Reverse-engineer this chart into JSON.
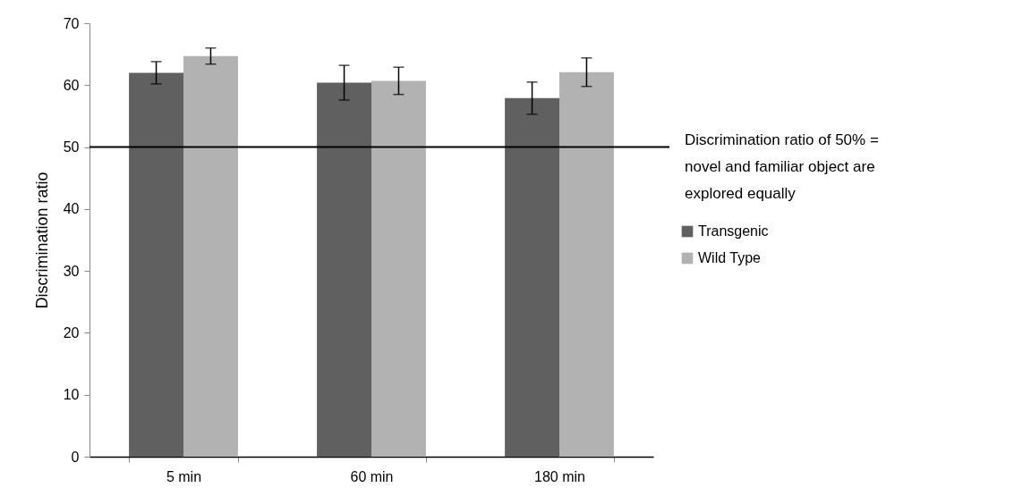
{
  "chart_data": {
    "type": "bar",
    "ylabel": "Discrimination ratio",
    "categories": [
      "5 min",
      "60 min",
      "180 min"
    ],
    "series": [
      {
        "name": "Transgenic",
        "color": "#606060",
        "values": [
          62.0,
          60.4,
          57.9
        ],
        "errors": [
          1.8,
          2.8,
          2.6
        ]
      },
      {
        "name": "Wild Type",
        "color": "#b2b2b2",
        "values": [
          64.7,
          60.7,
          62.1
        ],
        "errors": [
          1.3,
          2.2,
          2.3
        ]
      }
    ],
    "ylim": [
      0,
      70
    ],
    "yticks": [
      0,
      10,
      20,
      30,
      40,
      50,
      60,
      70
    ],
    "grid": false,
    "legend": "right",
    "ref_lines": [
      {
        "axis": "y",
        "value": 50,
        "label": "Discrimination ratio of 50% = novel and familiar object are explored equally",
        "color": "#000000"
      }
    ]
  }
}
